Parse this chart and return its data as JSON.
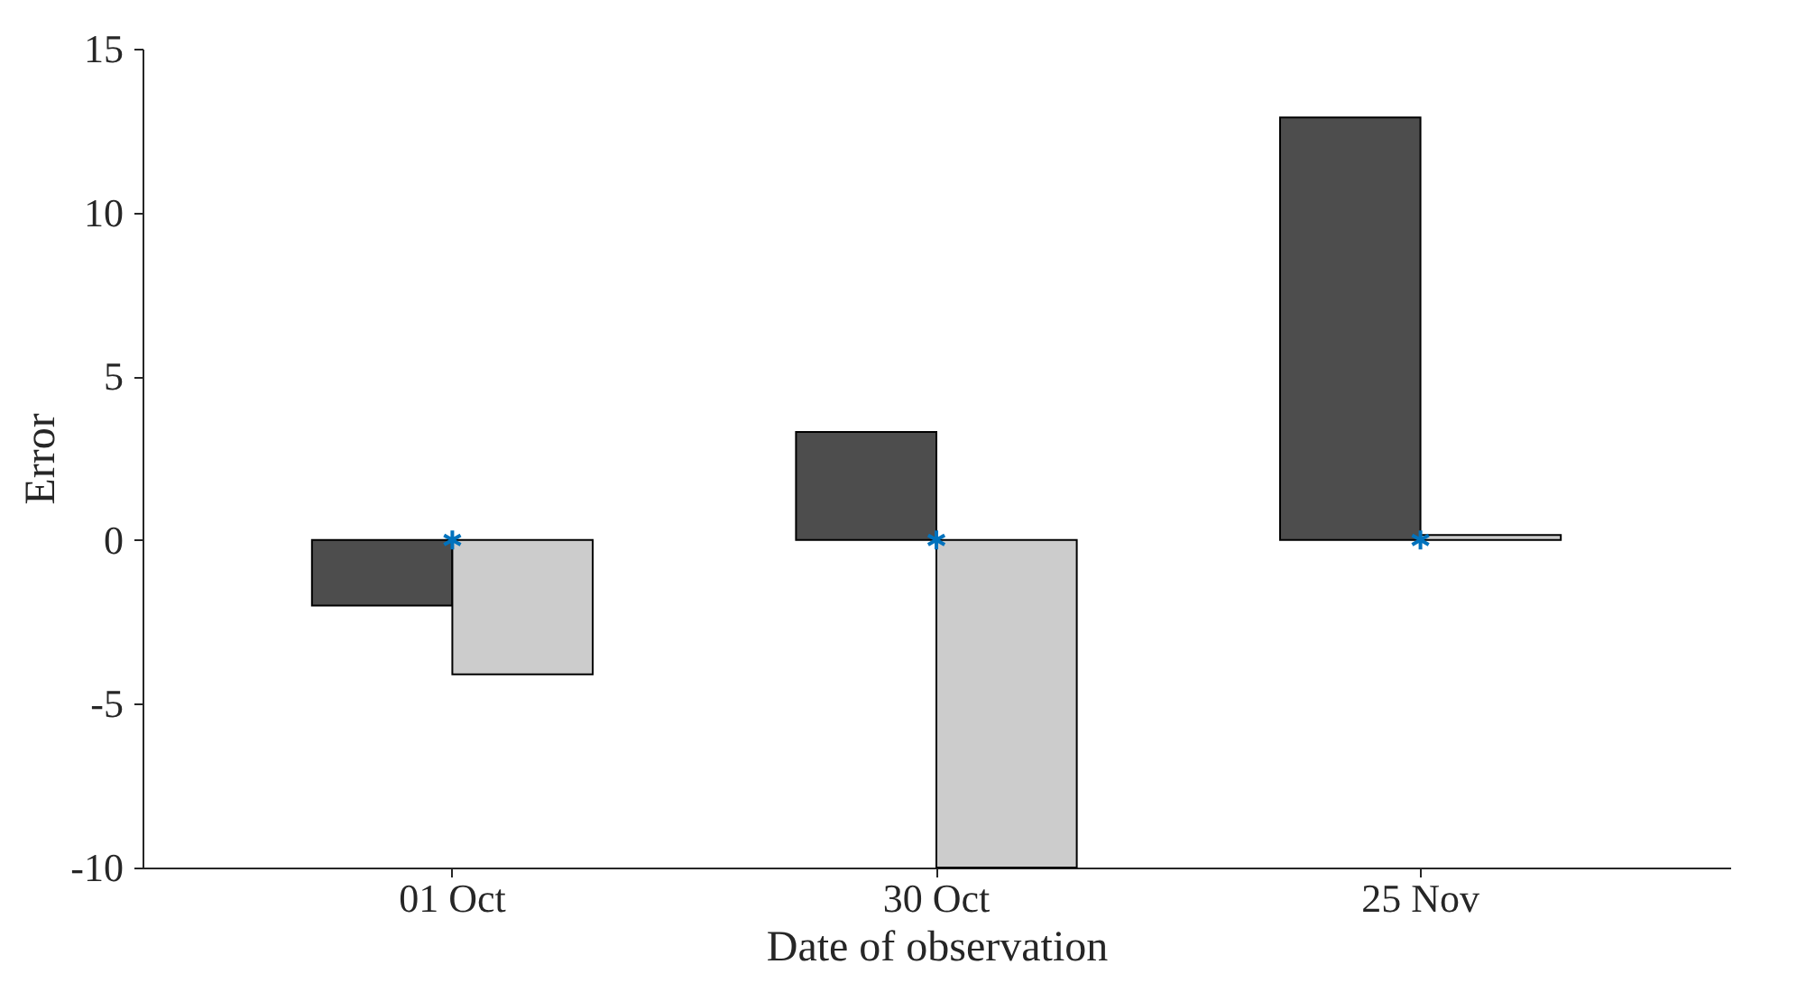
{
  "chart_data": {
    "type": "bar",
    "xlabel": "Date of observation",
    "ylabel": "Error",
    "categories": [
      "01 Oct",
      "30 Oct",
      "25 Nov"
    ],
    "series": [
      {
        "color": "#4d4d4d",
        "values": [
          -2.0,
          3.3,
          12.9
        ]
      },
      {
        "color": "#cccccc",
        "values": [
          -4.1,
          -10.0,
          0.15
        ]
      },
      {
        "type": "scatter",
        "color": "#0072bd",
        "marker": "cross",
        "x": [
          "01 Oct",
          "30 Oct",
          "25 Nov"
        ],
        "values": [
          0,
          0,
          0
        ]
      }
    ],
    "ylim": [
      -10,
      15
    ],
    "yticks": [
      -10,
      -5,
      0,
      5,
      10,
      15
    ],
    "grid": false
  }
}
